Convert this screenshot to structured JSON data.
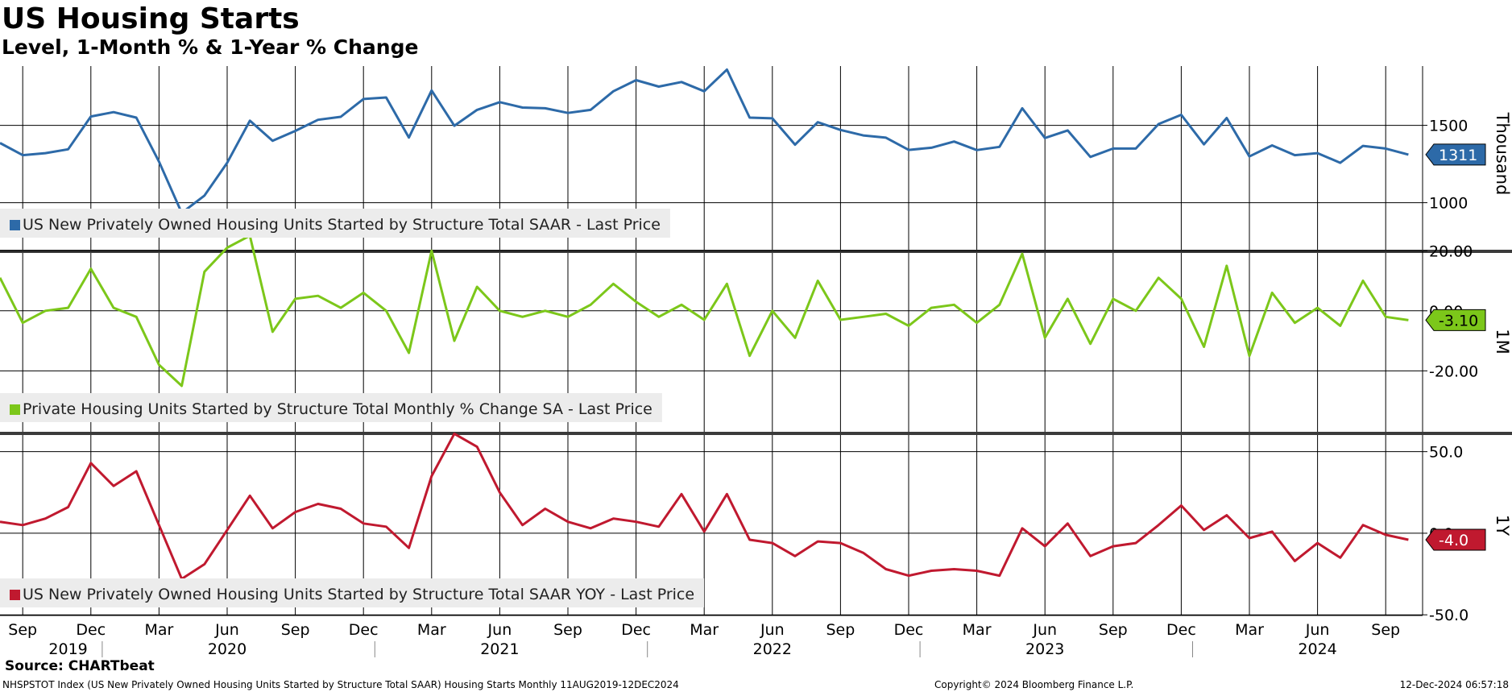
{
  "header": {
    "title": "US Housing Starts",
    "subtitle": "Level, 1-Month % & 1-Year % Change"
  },
  "footer": {
    "source": "Source: CHARTbeat",
    "description": "NHSPSTOT Index (US New Privately Owned Housing Units Started by Structure Total SAAR) Housing Starts  Monthly 11AUG2019-12DEC2024",
    "copyright": "Copyright© 2024 Bloomberg Finance L.P.",
    "timestamp": "12-Dec-2024 06:57:18"
  },
  "chart_data": {
    "type": "line",
    "x": [
      "2019-08",
      "2019-09",
      "2019-10",
      "2019-11",
      "2019-12",
      "2020-01",
      "2020-02",
      "2020-03",
      "2020-04",
      "2020-05",
      "2020-06",
      "2020-07",
      "2020-08",
      "2020-09",
      "2020-10",
      "2020-11",
      "2020-12",
      "2021-01",
      "2021-02",
      "2021-03",
      "2021-04",
      "2021-05",
      "2021-06",
      "2021-07",
      "2021-08",
      "2021-09",
      "2021-10",
      "2021-11",
      "2021-12",
      "2022-01",
      "2022-02",
      "2022-03",
      "2022-04",
      "2022-05",
      "2022-06",
      "2022-07",
      "2022-08",
      "2022-09",
      "2022-10",
      "2022-11",
      "2022-12",
      "2023-01",
      "2023-02",
      "2023-03",
      "2023-04",
      "2023-05",
      "2023-06",
      "2023-07",
      "2023-08",
      "2023-09",
      "2023-10",
      "2023-11",
      "2023-12",
      "2024-01",
      "2024-02",
      "2024-03",
      "2024-04",
      "2024-05",
      "2024-06",
      "2024-07",
      "2024-08",
      "2024-09",
      "2024-10"
    ],
    "x_axis": {
      "month_ticks": [
        {
          "date": "2019-09",
          "label": "Sep"
        },
        {
          "date": "2019-12",
          "label": "Dec"
        },
        {
          "date": "2020-03",
          "label": "Mar"
        },
        {
          "date": "2020-06",
          "label": "Jun"
        },
        {
          "date": "2020-09",
          "label": "Sep"
        },
        {
          "date": "2020-12",
          "label": "Dec"
        },
        {
          "date": "2021-03",
          "label": "Mar"
        },
        {
          "date": "2021-06",
          "label": "Jun"
        },
        {
          "date": "2021-09",
          "label": "Sep"
        },
        {
          "date": "2021-12",
          "label": "Dec"
        },
        {
          "date": "2022-03",
          "label": "Mar"
        },
        {
          "date": "2022-06",
          "label": "Jun"
        },
        {
          "date": "2022-09",
          "label": "Sep"
        },
        {
          "date": "2022-12",
          "label": "Dec"
        },
        {
          "date": "2023-03",
          "label": "Mar"
        },
        {
          "date": "2023-06",
          "label": "Jun"
        },
        {
          "date": "2023-09",
          "label": "Sep"
        },
        {
          "date": "2023-12",
          "label": "Dec"
        },
        {
          "date": "2024-03",
          "label": "Mar"
        },
        {
          "date": "2024-06",
          "label": "Jun"
        },
        {
          "date": "2024-09",
          "label": "Sep"
        }
      ],
      "year_labels": [
        {
          "date": "2019-11",
          "label": "2019"
        },
        {
          "date": "2020-06",
          "label": "2020"
        },
        {
          "date": "2021-06",
          "label": "2021"
        },
        {
          "date": "2022-06",
          "label": "2022"
        },
        {
          "date": "2023-06",
          "label": "2023"
        },
        {
          "date": "2024-06",
          "label": "2024"
        }
      ],
      "year_dividers": [
        "2020-01",
        "2021-01",
        "2022-01",
        "2023-01",
        "2024-01"
      ],
      "range": [
        "2019-08",
        "2024-11"
      ]
    },
    "panels": [
      {
        "name": "level",
        "legend": "US New Privately Owned Housing Units Started by Structure Total SAAR - Last Price",
        "color": "#2d6aa8",
        "unit_label": "Thousand",
        "ylim": [
          696,
          1883
        ],
        "y_ticks": [
          {
            "value": 1000,
            "label": "1000"
          },
          {
            "value": 1500,
            "label": "1500"
          }
        ],
        "last_value": 1311,
        "last_label": "1311",
        "values": [
          1386,
          1307,
          1320,
          1345,
          1557,
          1585,
          1550,
          1265,
          934,
          1046,
          1258,
          1530,
          1400,
          1464,
          1536,
          1555,
          1670,
          1680,
          1421,
          1725,
          1497,
          1600,
          1650,
          1615,
          1610,
          1580,
          1600,
          1720,
          1792,
          1750,
          1780,
          1720,
          1860,
          1550,
          1545,
          1375,
          1520,
          1470,
          1435,
          1420,
          1341,
          1355,
          1395,
          1340,
          1361,
          1610,
          1418,
          1467,
          1296,
          1350,
          1350,
          1508,
          1568,
          1377,
          1547,
          1299,
          1370,
          1307,
          1320,
          1258,
          1367,
          1350,
          1311
        ],
        "grid_y": "horizontal at ticks"
      },
      {
        "name": "monthly_change",
        "legend": "Private Housing Units Started by Structure Total Monthly % Change SA - Last Price",
        "color": "#7cc71a",
        "unit_label": "1M",
        "ylim": [
          -40.3,
          19.8
        ],
        "y_ticks": [
          {
            "value": -20,
            "label": "-20.00"
          },
          {
            "value": 0,
            "label": "0.00"
          },
          {
            "value": 20,
            "label": "20.00"
          }
        ],
        "last_value": -3.1,
        "last_label": "-3.10",
        "values": [
          11,
          -4,
          0,
          1,
          14,
          1,
          -2,
          -18,
          -25,
          13,
          21,
          25,
          -7,
          4,
          5,
          1,
          6,
          0,
          -14,
          20,
          -10,
          8,
          0,
          -2,
          0,
          -2,
          2,
          9,
          3,
          -2,
          2,
          -3,
          9,
          -15,
          0,
          -9,
          10,
          -3,
          -2,
          -1,
          -5,
          1,
          2,
          -4,
          2,
          19,
          -9,
          4,
          -11,
          4,
          0,
          11,
          4,
          -12,
          15,
          -15,
          6,
          -4,
          1,
          -5,
          10,
          -2,
          -3.1
        ],
        "grid_y": "horizontal at ticks"
      },
      {
        "name": "yearly_change",
        "legend": "US New Privately Owned Housing Units Started by Structure Total SAAR YOY - Last Price",
        "color": "#c0192f",
        "unit_label": "1Y",
        "ylim": [
          -50.4,
          60.2
        ],
        "y_ticks": [
          {
            "value": -50,
            "label": "-50.0"
          },
          {
            "value": 0,
            "label": "0.0"
          },
          {
            "value": 50,
            "label": "50.0"
          }
        ],
        "last_value": -4.0,
        "last_label": "-4.0",
        "values": [
          7,
          5,
          9,
          16,
          43,
          29,
          38,
          5,
          -28,
          -19,
          2,
          23,
          3,
          13,
          18,
          15,
          6,
          4,
          -9,
          35,
          61,
          53,
          25,
          5,
          15,
          7,
          3,
          9,
          7,
          4,
          24,
          1,
          24,
          -4,
          -6,
          -14,
          -5,
          -6,
          -12,
          -22,
          -26,
          -23,
          -22,
          -23,
          -26,
          3,
          -8,
          6,
          -14,
          -8,
          -6,
          5,
          17,
          2,
          11,
          -3,
          1,
          -17,
          -6,
          -15,
          5,
          -1,
          -4
        ],
        "grid_y": "horizontal at ticks"
      }
    ],
    "grid": true,
    "vertical_grid": "quarterly"
  }
}
